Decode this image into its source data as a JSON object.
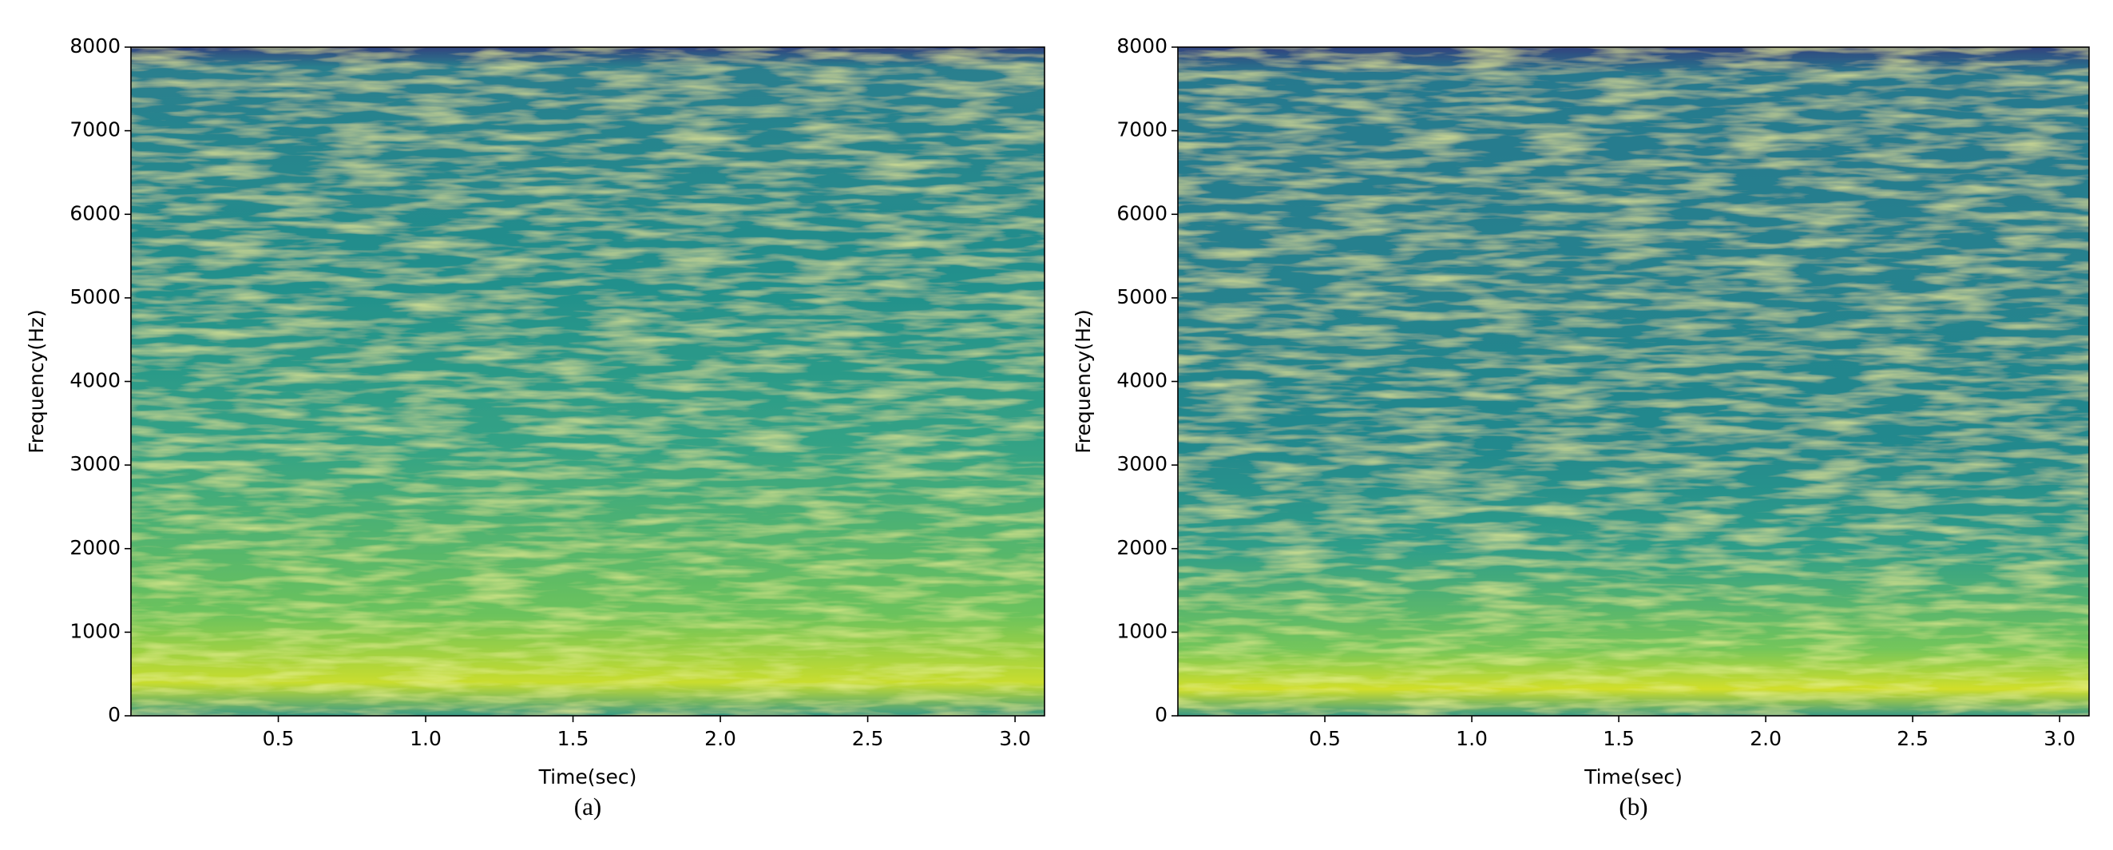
{
  "chart_data": [
    {
      "type": "spectrogram",
      "xlabel": "Time(sec)",
      "ylabel": "Frequency(Hz)",
      "caption": "(a)",
      "xlim": [
        0,
        3.1
      ],
      "xticks": [
        0.5,
        {
          "value": 1,
          "label": "1.0"
        },
        1.5,
        {
          "value": 2,
          "label": "2.0"
        },
        2.5,
        {
          "value": 3,
          "label": "3.0"
        }
      ],
      "ylim": [
        0,
        8000
      ],
      "yticks": [
        0,
        1000,
        2000,
        3000,
        4000,
        5000,
        6000,
        7000,
        8000
      ]
    },
    {
      "type": "spectrogram",
      "xlabel": "Time(sec)",
      "ylabel": "Frequency(Hz)",
      "caption": "(b)",
      "xlim": [
        0,
        3.1
      ],
      "xticks": [
        0.5,
        {
          "value": 1,
          "label": "1.0"
        },
        1.5,
        {
          "value": 2,
          "label": "2.0"
        },
        2.5,
        {
          "value": 3,
          "label": "3.0"
        }
      ],
      "ylim": [
        0,
        8000
      ],
      "yticks": [
        0,
        1000,
        2000,
        3000,
        4000,
        5000,
        6000,
        7000,
        8000
      ]
    }
  ]
}
